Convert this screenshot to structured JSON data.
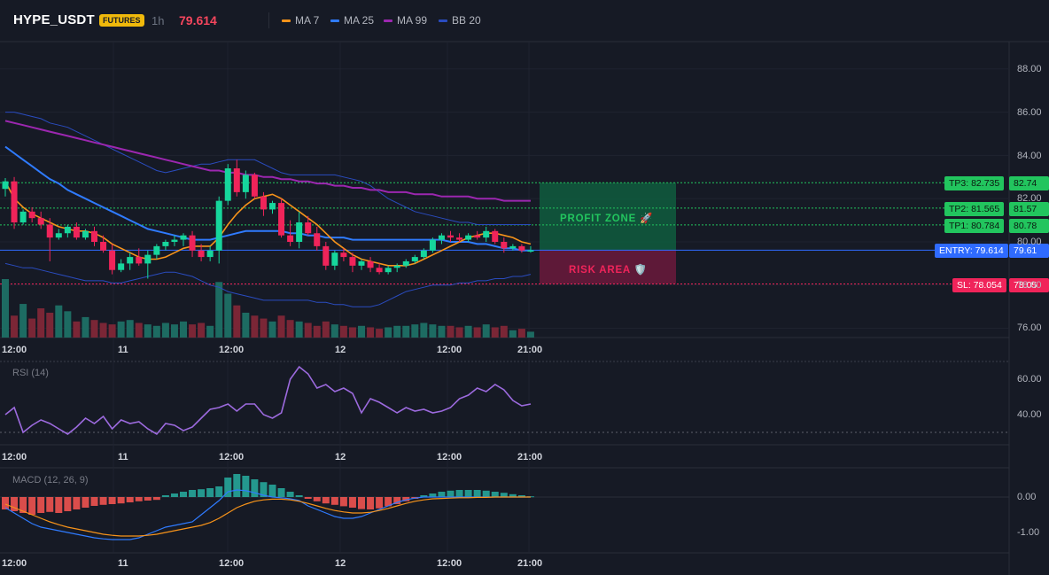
{
  "header": {
    "symbol": "HYPE_USDT",
    "badge": "FUTURES",
    "timeframe": "1h",
    "last_price": "79.614",
    "indicators": [
      {
        "label": "MA 7",
        "color": "#f7931a"
      },
      {
        "label": "MA 25",
        "color": "#2f7bff"
      },
      {
        "label": "MA 99",
        "color": "#9c27b0"
      },
      {
        "label": "BB 20",
        "color": "#2a4cc0"
      }
    ]
  },
  "price_axis": [
    "88.00",
    "86.00",
    "84.00",
    "82.00",
    "80.00",
    "78.00",
    "76.00"
  ],
  "time_axis": [
    "12:00",
    "11",
    "12:00",
    "12",
    "12:00",
    "21:00"
  ],
  "levels": {
    "tp3": {
      "label": "TP3: 82.735",
      "axis": "82.74",
      "color": "#22c55e"
    },
    "tp2": {
      "label": "TP2: 81.565",
      "axis": "81.57",
      "color": "#22c55e"
    },
    "tp1": {
      "label": "TP1: 80.784",
      "axis": "80.78",
      "color": "#22c55e"
    },
    "entry": {
      "label": "ENTRY: 79.614",
      "axis": "79.61",
      "color": "#2f6bff"
    },
    "sl": {
      "label": "SL: 78.054",
      "axis": "78.05",
      "color": "#f0245a"
    }
  },
  "zones": {
    "profit": "PROFIT ZONE 🚀",
    "risk": "RISK AREA 🛡️"
  },
  "rsi": {
    "title": "RSI (14)",
    "axis": [
      "60.00",
      "40.00"
    ]
  },
  "macd": {
    "title": "MACD (12, 26, 9)",
    "axis": [
      "0.00",
      "-1.00"
    ]
  },
  "chart_data": {
    "type": "candlestick",
    "candles": [
      [
        82.45,
        82.95,
        82.1,
        82.8
      ],
      [
        82.8,
        83.0,
        80.6,
        80.9
      ],
      [
        80.9,
        81.5,
        80.8,
        81.4
      ],
      [
        81.4,
        81.6,
        80.9,
        81.1
      ],
      [
        81.1,
        81.4,
        80.6,
        80.8
      ],
      [
        80.8,
        81.1,
        79.1,
        80.2
      ],
      [
        80.2,
        80.6,
        80.1,
        80.4
      ],
      [
        80.4,
        80.8,
        80.2,
        80.7
      ],
      [
        80.7,
        80.9,
        80.1,
        80.2
      ],
      [
        80.2,
        80.6,
        80.1,
        80.5
      ],
      [
        80.5,
        80.7,
        79.8,
        80.0
      ],
      [
        80.0,
        80.3,
        79.5,
        79.6
      ],
      [
        79.6,
        79.9,
        78.5,
        78.7
      ],
      [
        78.7,
        79.2,
        78.6,
        79.0
      ],
      [
        79.0,
        79.5,
        78.7,
        79.3
      ],
      [
        79.3,
        79.7,
        78.9,
        79.0
      ],
      [
        79.0,
        79.6,
        78.3,
        79.4
      ],
      [
        79.4,
        79.9,
        79.2,
        79.8
      ],
      [
        79.8,
        80.1,
        79.6,
        80.0
      ],
      [
        80.0,
        80.3,
        79.8,
        80.1
      ],
      [
        80.1,
        80.4,
        79.8,
        80.3
      ],
      [
        80.3,
        80.5,
        79.3,
        79.6
      ],
      [
        79.6,
        79.9,
        79.1,
        79.3
      ],
      [
        79.3,
        79.8,
        79.1,
        79.6
      ],
      [
        79.6,
        82.1,
        79.0,
        81.9
      ],
      [
        81.9,
        83.6,
        81.7,
        83.4
      ],
      [
        83.4,
        83.8,
        82.1,
        82.3
      ],
      [
        82.3,
        83.3,
        82.0,
        83.1
      ],
      [
        83.1,
        83.2,
        82.0,
        82.1
      ],
      [
        82.1,
        82.3,
        81.2,
        81.5
      ],
      [
        81.5,
        81.9,
        81.3,
        81.8
      ],
      [
        81.8,
        82.0,
        80.2,
        80.3
      ],
      [
        80.3,
        81.0,
        79.8,
        80.0
      ],
      [
        80.0,
        81.4,
        79.7,
        80.9
      ],
      [
        80.9,
        81.2,
        80.3,
        80.4
      ],
      [
        80.4,
        80.7,
        79.6,
        79.8
      ],
      [
        79.8,
        80.0,
        78.7,
        78.9
      ],
      [
        78.9,
        79.6,
        78.7,
        79.5
      ],
      [
        79.5,
        79.7,
        79.1,
        79.3
      ],
      [
        79.3,
        79.5,
        78.6,
        78.9
      ],
      [
        78.9,
        79.2,
        78.7,
        79.1
      ],
      [
        79.1,
        79.3,
        78.6,
        78.8
      ],
      [
        78.8,
        79.0,
        78.5,
        78.6
      ],
      [
        78.6,
        78.9,
        78.5,
        78.8
      ],
      [
        78.8,
        79.0,
        78.6,
        78.9
      ],
      [
        78.9,
        79.2,
        78.8,
        79.1
      ],
      [
        79.1,
        79.4,
        79.0,
        79.3
      ],
      [
        79.3,
        79.7,
        79.2,
        79.6
      ],
      [
        79.6,
        80.2,
        79.5,
        80.1
      ],
      [
        80.1,
        80.4,
        79.9,
        80.3
      ],
      [
        80.3,
        80.5,
        80.0,
        80.2
      ],
      [
        80.2,
        80.4,
        80.0,
        80.1
      ],
      [
        80.1,
        80.4,
        80.0,
        80.3
      ],
      [
        80.3,
        80.5,
        80.1,
        80.2
      ],
      [
        80.2,
        80.7,
        80.0,
        80.5
      ],
      [
        80.5,
        80.6,
        79.9,
        80.0
      ],
      [
        80.0,
        80.2,
        79.5,
        79.7
      ],
      [
        79.7,
        79.9,
        79.6,
        79.8
      ],
      [
        79.8,
        79.9,
        79.5,
        79.6
      ],
      [
        79.6,
        79.8,
        79.5,
        79.61
      ]
    ],
    "volume": [
      40,
      15,
      23,
      13,
      20,
      17,
      22,
      18,
      11,
      14,
      12,
      10,
      9,
      11,
      12,
      10,
      9,
      8,
      10,
      9,
      11,
      9,
      10,
      8,
      38,
      30,
      22,
      17,
      15,
      13,
      11,
      15,
      12,
      11,
      10,
      8,
      11,
      9,
      8,
      7,
      8,
      7,
      6,
      7,
      8,
      8,
      9,
      10,
      9,
      8,
      8,
      7,
      8,
      7,
      9,
      7,
      8,
      5,
      6,
      4
    ],
    "ma7": [
      82.8,
      82.0,
      81.6,
      81.3,
      81.1,
      80.9,
      80.7,
      80.6,
      80.5,
      80.5,
      80.4,
      80.2,
      79.9,
      79.7,
      79.5,
      79.3,
      79.2,
      79.2,
      79.3,
      79.5,
      79.7,
      79.8,
      79.8,
      79.8,
      80.2,
      80.8,
      81.3,
      81.7,
      82.0,
      82.1,
      82.2,
      82.0,
      81.7,
      81.4,
      81.1,
      80.8,
      80.4,
      80.0,
      79.7,
      79.4,
      79.2,
      79.1,
      79.0,
      78.9,
      78.9,
      78.9,
      79.0,
      79.2,
      79.4,
      79.6,
      79.8,
      80.0,
      80.2,
      80.3,
      80.4,
      80.4,
      80.3,
      80.2,
      80.0,
      79.9
    ],
    "ma25": [
      84.4,
      84.1,
      83.8,
      83.5,
      83.2,
      82.9,
      82.7,
      82.4,
      82.2,
      82.0,
      81.8,
      81.6,
      81.4,
      81.2,
      81.0,
      80.8,
      80.6,
      80.5,
      80.4,
      80.3,
      80.2,
      80.1,
      80.1,
      80.1,
      80.2,
      80.3,
      80.4,
      80.5,
      80.5,
      80.5,
      80.5,
      80.5,
      80.4,
      80.4,
      80.3,
      80.3,
      80.2,
      80.2,
      80.2,
      80.1,
      80.1,
      80.1,
      80.1,
      80.1,
      80.1,
      80.1,
      80.1,
      80.1,
      80.1,
      80.1,
      80.0,
      80.0,
      80.0,
      79.9,
      79.9,
      79.8,
      79.7,
      79.7,
      79.6,
      79.6
    ],
    "ma99": [
      85.6,
      85.5,
      85.4,
      85.3,
      85.2,
      85.1,
      85.0,
      84.9,
      84.8,
      84.7,
      84.6,
      84.5,
      84.4,
      84.3,
      84.2,
      84.1,
      84.0,
      83.9,
      83.8,
      83.7,
      83.6,
      83.5,
      83.4,
      83.3,
      83.3,
      83.2,
      83.2,
      83.1,
      83.1,
      83.0,
      83.0,
      82.9,
      82.9,
      82.8,
      82.8,
      82.7,
      82.7,
      82.6,
      82.6,
      82.5,
      82.5,
      82.4,
      82.4,
      82.3,
      82.3,
      82.3,
      82.2,
      82.2,
      82.2,
      82.1,
      82.1,
      82.1,
      82.1,
      82.0,
      82.0,
      82.0,
      81.9,
      81.9,
      81.9,
      81.9
    ],
    "bb_upper": [
      86.0,
      86.0,
      85.9,
      85.8,
      85.7,
      85.5,
      85.4,
      85.3,
      85.1,
      84.9,
      84.7,
      84.5,
      84.3,
      84.1,
      83.9,
      83.7,
      83.5,
      83.3,
      83.2,
      83.3,
      83.4,
      83.5,
      83.6,
      83.6,
      83.7,
      83.8,
      83.8,
      83.8,
      83.8,
      83.6,
      83.4,
      83.2,
      83.1,
      83.1,
      83.1,
      83.1,
      83.1,
      83.1,
      83.0,
      82.9,
      82.8,
      82.6,
      82.3,
      82.0,
      81.8,
      81.6,
      81.4,
      81.3,
      81.2,
      81.1,
      81.0,
      80.9,
      80.9,
      80.8,
      80.8,
      80.8,
      80.8,
      80.8,
      80.8,
      80.8
    ],
    "bb_lower": [
      79.0,
      78.9,
      78.8,
      78.8,
      78.7,
      78.6,
      78.5,
      78.4,
      78.3,
      78.2,
      78.2,
      78.2,
      78.1,
      78.1,
      78.2,
      78.3,
      78.4,
      78.5,
      78.6,
      78.6,
      78.5,
      78.4,
      78.2,
      78.0,
      77.9,
      77.7,
      77.6,
      77.5,
      77.4,
      77.3,
      77.3,
      77.3,
      77.3,
      77.3,
      77.3,
      77.2,
      77.2,
      77.1,
      77.1,
      77.0,
      77.0,
      77.0,
      77.1,
      77.3,
      77.5,
      77.7,
      77.8,
      77.9,
      78.0,
      78.0,
      78.0,
      78.1,
      78.1,
      78.2,
      78.2,
      78.3,
      78.3,
      78.4,
      78.4,
      78.5
    ],
    "rsi": [
      40,
      44,
      30,
      34,
      37,
      35,
      32,
      29,
      33,
      38,
      35,
      39,
      32,
      37,
      35,
      36,
      32,
      29,
      35,
      34,
      31,
      33,
      38,
      43,
      44,
      46,
      42,
      46,
      46,
      40,
      38,
      41,
      60,
      67,
      63,
      55,
      57,
      53,
      55,
      52,
      41,
      49,
      47,
      44,
      41,
      44,
      42,
      43,
      41,
      42,
      44,
      49,
      51,
      55,
      53,
      57,
      54,
      48,
      45,
      46
    ],
    "macd_hist": [
      -0.35,
      -0.4,
      -0.45,
      -0.5,
      -0.45,
      -0.42,
      -0.45,
      -0.4,
      -0.35,
      -0.3,
      -0.25,
      -0.22,
      -0.2,
      -0.18,
      -0.15,
      -0.12,
      -0.1,
      -0.08,
      0.05,
      0.1,
      0.15,
      0.2,
      0.22,
      0.25,
      0.3,
      0.55,
      0.65,
      0.6,
      0.5,
      0.42,
      0.35,
      0.25,
      0.15,
      0.05,
      -0.05,
      -0.12,
      -0.18,
      -0.22,
      -0.26,
      -0.3,
      -0.34,
      -0.35,
      -0.32,
      -0.26,
      -0.2,
      -0.12,
      -0.05,
      0.05,
      0.1,
      0.15,
      0.18,
      0.2,
      0.2,
      0.2,
      0.18,
      0.15,
      0.12,
      0.08,
      0.05,
      0.02
    ],
    "macd_line": [
      -0.3,
      -0.45,
      -0.6,
      -0.75,
      -0.85,
      -0.9,
      -0.95,
      -1.0,
      -1.05,
      -1.1,
      -1.15,
      -1.18,
      -1.2,
      -1.2,
      -1.2,
      -1.15,
      -1.05,
      -0.95,
      -0.85,
      -0.8,
      -0.75,
      -0.7,
      -0.5,
      -0.3,
      -0.1,
      0.15,
      0.2,
      0.18,
      0.12,
      0.05,
      0.0,
      -0.02,
      -0.05,
      -0.1,
      -0.25,
      -0.35,
      -0.45,
      -0.55,
      -0.6,
      -0.6,
      -0.55,
      -0.45,
      -0.35,
      -0.25,
      -0.15,
      -0.08,
      -0.03,
      0.0,
      0.0,
      0.0,
      0.0,
      0.0,
      0.0,
      0.0,
      0.0,
      0.0,
      0.0,
      0.0,
      0.0,
      0.0
    ],
    "signal_line": [
      -0.2,
      -0.3,
      -0.4,
      -0.5,
      -0.6,
      -0.7,
      -0.78,
      -0.85,
      -0.9,
      -0.95,
      -1.0,
      -1.05,
      -1.08,
      -1.1,
      -1.1,
      -1.1,
      -1.08,
      -1.05,
      -1.0,
      -0.95,
      -0.9,
      -0.85,
      -0.8,
      -0.72,
      -0.6,
      -0.45,
      -0.3,
      -0.2,
      -0.12,
      -0.08,
      -0.06,
      -0.06,
      -0.08,
      -0.12,
      -0.18,
      -0.25,
      -0.32,
      -0.38,
      -0.42,
      -0.45,
      -0.45,
      -0.43,
      -0.38,
      -0.32,
      -0.25,
      -0.18,
      -0.12,
      -0.08,
      -0.05,
      -0.04,
      -0.03,
      -0.02,
      -0.02,
      -0.01,
      -0.01,
      0.0,
      0.0,
      0.0,
      0.0,
      0.0
    ]
  }
}
